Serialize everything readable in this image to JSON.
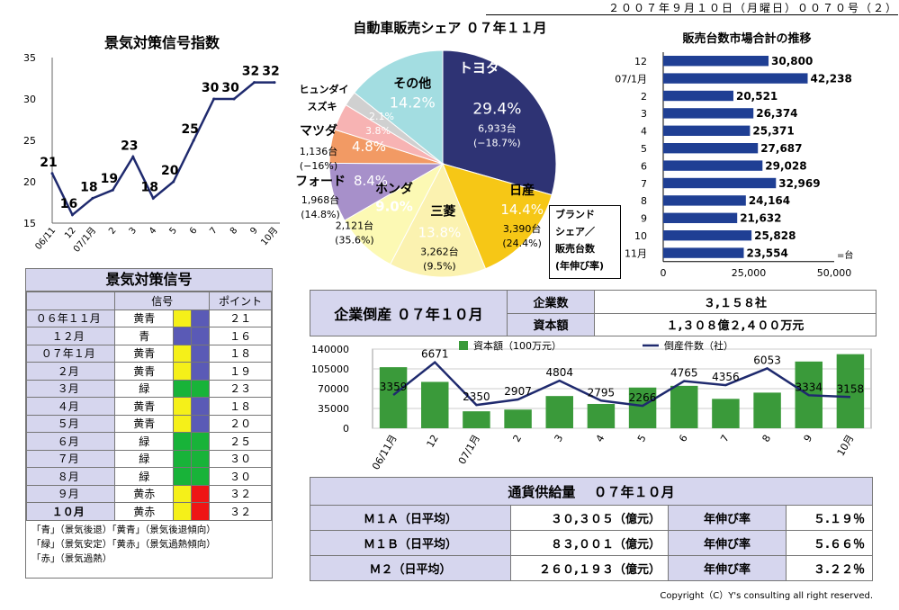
{
  "header_date": "２００７年９月１０日（月曜日）００７０号（２）",
  "copyright": "Copyright（C）Y's consulting all right reserved.",
  "index_chart": {
    "type": "line",
    "title": "景気対策信号指数",
    "x": [
      "06/11",
      "12",
      "07/1月",
      "2",
      "3",
      "4",
      "5",
      "6",
      "7",
      "8",
      "9",
      "10月"
    ],
    "y_ticks": [
      "15",
      "20",
      "25",
      "30",
      "35"
    ],
    "ylim": [
      15,
      35
    ],
    "values": [
      21,
      16,
      18,
      19,
      23,
      18,
      20,
      25,
      30,
      30,
      32,
      32
    ],
    "labels": [
      "21",
      "16",
      "18",
      "19",
      "23",
      "18",
      "20",
      "25",
      "30",
      "30",
      "32",
      "32"
    ],
    "color": "#1f2a6e"
  },
  "pie_chart": {
    "type": "pie",
    "title": "自動車販売シェア ０７年１１月",
    "slices": [
      {
        "name": "トヨタ",
        "pct": 29.4,
        "pct_label": "29.4%",
        "units": "6,933台",
        "growth": "(−18.7%)",
        "color": "#2e3374"
      },
      {
        "name": "日産",
        "pct": 14.4,
        "pct_label": "14.4%",
        "units": "3,390台",
        "growth": "(24.4%)",
        "color": "#f6c716"
      },
      {
        "name": "三菱",
        "pct": 13.8,
        "pct_label": "13.8%",
        "units": "3,262台",
        "growth": "(9.5%)",
        "color": "#fbf2b0"
      },
      {
        "name": "ホンダ",
        "pct": 9.0,
        "pct_label": "9.0%",
        "units": "2,121台",
        "growth": "(35.6%)",
        "color": "#fcf9b4"
      },
      {
        "name": "フォード",
        "pct": 8.4,
        "pct_label": "8.4%",
        "units": "1,968台",
        "growth": "(14.8%)",
        "color": "#a790ca"
      },
      {
        "name": "マツダ",
        "pct": 4.8,
        "pct_label": "4.8%",
        "units": "1,136台",
        "growth": "(−16%)",
        "color": "#f29a64"
      },
      {
        "name": "スズキ",
        "pct": 3.8,
        "pct_label": "3.8%",
        "color": "#f7b3b3"
      },
      {
        "name": "ヒュンダイ",
        "pct": 2.1,
        "pct_label": "2.1%",
        "color": "#d0d0d0"
      },
      {
        "name": "その他",
        "pct": 14.2,
        "pct_label": "14.2%",
        "color": "#a3dde1"
      }
    ],
    "legend_text": [
      "ブランド",
      "シェア／",
      "販売台数",
      "(年伸び率)"
    ]
  },
  "hbar_chart": {
    "type": "bar",
    "title": "販売台数市場合計の推移",
    "categories": [
      "12",
      "07/1月",
      "2",
      "3",
      "4",
      "5",
      "6",
      "7",
      "8",
      "9",
      "10",
      "11月"
    ],
    "values": [
      30800,
      42238,
      20521,
      26374,
      25371,
      27687,
      29028,
      32969,
      24164,
      21632,
      25828,
      23554
    ],
    "value_labels": [
      "30,800",
      "42,238",
      "20,521",
      "26,374",
      "25,371",
      "27,687",
      "29,028",
      "32,969",
      "24,164",
      "21,632",
      "25,828",
      "23,554"
    ],
    "x_ticks": [
      "0",
      "25,000",
      "50,000"
    ],
    "xlim": [
      0,
      50000
    ],
    "unit": "=台",
    "color": "#1f3f94"
  },
  "signal_table": {
    "title": "景気対策信号",
    "col_signal": "信号",
    "col_point": "ポイント",
    "rows": [
      {
        "month": "０６年１１月",
        "signal": "黄青",
        "colors": [
          "#f5f019",
          "#5a5ab6"
        ],
        "point": "２１"
      },
      {
        "month": "１２月",
        "signal": "青",
        "colors": [
          "#5a5ab6",
          "#5a5ab6"
        ],
        "point": "１６"
      },
      {
        "month": "０７年１月",
        "signal": "黄青",
        "colors": [
          "#f5f019",
          "#5a5ab6"
        ],
        "point": "１８"
      },
      {
        "month": "２月",
        "signal": "黄青",
        "colors": [
          "#f5f019",
          "#5a5ab6"
        ],
        "point": "１９"
      },
      {
        "month": "３月",
        "signal": "緑",
        "colors": [
          "#18b339",
          "#18b339"
        ],
        "point": "２３"
      },
      {
        "month": "４月",
        "signal": "黄青",
        "colors": [
          "#f5f019",
          "#5a5ab6"
        ],
        "point": "１８"
      },
      {
        "month": "５月",
        "signal": "黄青",
        "colors": [
          "#f5f019",
          "#5a5ab6"
        ],
        "point": "２０"
      },
      {
        "month": "６月",
        "signal": "緑",
        "colors": [
          "#18b339",
          "#18b339"
        ],
        "point": "２５"
      },
      {
        "month": "７月",
        "signal": "緑",
        "colors": [
          "#18b339",
          "#18b339"
        ],
        "point": "３０"
      },
      {
        "month": "８月",
        "signal": "緑",
        "colors": [
          "#18b339",
          "#18b339"
        ],
        "point": "３０"
      },
      {
        "month": "９月",
        "signal": "黄赤",
        "colors": [
          "#f5f019",
          "#ee1515"
        ],
        "point": "３２"
      },
      {
        "month": "１０月",
        "signal": "黄赤",
        "colors": [
          "#f5f019",
          "#ee1515"
        ],
        "point": "３２"
      }
    ],
    "notes": [
      "「青」（景気後退）「黄青」（景気後退傾向）",
      "「緑」（景気安定）「黄赤」（景気過熱傾向）",
      "「赤」（景気過熱）"
    ]
  },
  "bankruptcy": {
    "title": "企業倒産 ０７年１０月",
    "count_label": "企業数",
    "count_value": "３,１５８社",
    "capital_label": "資本額",
    "capital_value": "１,３０８億２,４００万元"
  },
  "combo_chart": {
    "type": "bar",
    "categories": [
      "06/11月",
      "12",
      "07/1月",
      "2",
      "3",
      "4",
      "5",
      "6",
      "7",
      "8",
      "9",
      "10月"
    ],
    "series": [
      {
        "name": "資本額（100万元）",
        "type": "bar",
        "color": "#3a9a3a",
        "values": [
          108000,
          82000,
          30000,
          33000,
          57000,
          43000,
          72000,
          75000,
          52000,
          63000,
          118000,
          131000
        ]
      },
      {
        "name": "倒産件数（社）",
        "type": "line",
        "color": "#1f2a6e",
        "values": [
          3359,
          6671,
          2350,
          2907,
          4804,
          2795,
          2266,
          4765,
          4356,
          6053,
          3334,
          3158
        ],
        "labels": [
          "3359",
          "6671",
          "2350",
          "2907",
          "4804",
          "2795",
          "2266",
          "4765",
          "4356",
          "6053",
          "3334",
          "3158"
        ]
      }
    ],
    "y_ticks": [
      "0",
      "35000",
      "70000",
      "105000",
      "140000"
    ],
    "ylim": [
      0,
      140000
    ],
    "line_ylim": [
      0,
      8000
    ]
  },
  "money_supply": {
    "title": "通貨供給量　 ０７年１０月",
    "growth_label": "年伸び率",
    "rows": [
      {
        "label": "Ｍ１Ａ（日平均）",
        "value": "３０,３０５（億元）",
        "growth": "５.１９％"
      },
      {
        "label": "Ｍ１Ｂ（日平均）",
        "value": "８３,００１（億元）",
        "growth": "５.６６％"
      },
      {
        "label": "Ｍ２（日平均）",
        "value": "２６０,１９３（億元）",
        "growth": "３.２２％"
      }
    ]
  }
}
